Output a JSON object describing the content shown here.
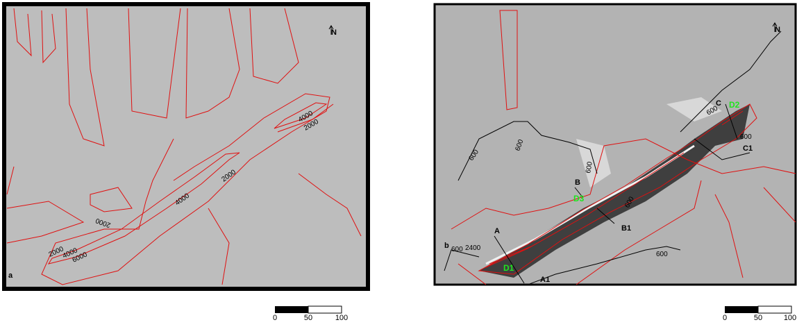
{
  "panels": [
    {
      "label": "a",
      "north": "N",
      "contour_labels": [
        "2000",
        "4000",
        "2000",
        "4000",
        "2000",
        "2000",
        "4000",
        "6000"
      ],
      "scale": [
        "0",
        "50",
        "100"
      ]
    },
    {
      "label": "b",
      "north": "N",
      "contour_labels": [
        "600",
        "600",
        "600",
        "600",
        "600",
        "600",
        "600",
        "600",
        "2400"
      ],
      "profiles": [
        "A",
        "A1",
        "B",
        "B1",
        "C",
        "C1"
      ],
      "sites": [
        "D1",
        "D2",
        "D3"
      ],
      "scale": [
        "0",
        "50",
        "100"
      ]
    }
  ]
}
